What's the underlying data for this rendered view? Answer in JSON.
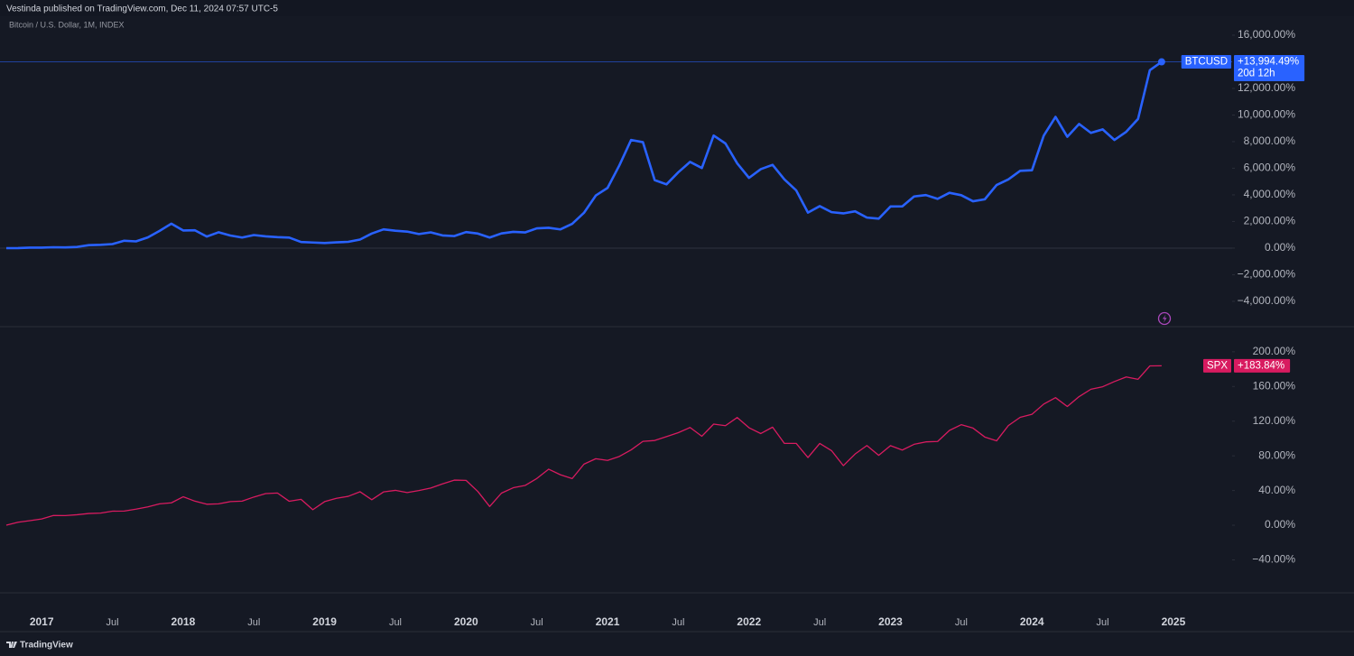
{
  "header": "Vestinda published on TradingView.com, Dec 11, 2024 07:57 UTC-5",
  "footer": "TradingView",
  "chart_data": [
    {
      "type": "line",
      "title": "Bitcoin / U.S. Dollar, 1M, INDEX",
      "ylim": [
        -5900,
        17420
      ],
      "yticks": [
        {
          "value": -4000,
          "label": "−4,000.00%"
        },
        {
          "value": -2000,
          "label": "−2,000.00%"
        },
        {
          "value": 0,
          "label": "0.00%"
        },
        {
          "value": 2000,
          "label": "2,000.00%"
        },
        {
          "value": 4000,
          "label": "4,000.00%"
        },
        {
          "value": 6000,
          "label": "6,000.00%"
        },
        {
          "value": 8000,
          "label": "8,000.00%"
        },
        {
          "value": 10000,
          "label": "10,000.00%"
        },
        {
          "value": 12000,
          "label": "12,000.00%"
        },
        {
          "value": 16000,
          "label": "16,000.00%"
        }
      ],
      "zero_line": true,
      "price_line": true,
      "last_marker": true,
      "series": [
        {
          "name": "BTCUSD",
          "color": "#2962ff",
          "last_label": "+13,994.49%",
          "countdown": "20d 12h",
          "values": [
            -2,
            3,
            35,
            35,
            66,
            51,
            89,
            221,
            246,
            302,
            556,
            506,
            801,
            1297,
            1836,
            1325,
            1339,
            868,
            1190,
            947,
            794,
            980,
            882,
            826,
            790,
            461,
            422,
            383,
            432,
            473,
            643,
            1097,
            1408,
            1308,
            1241,
            1058,
            1185,
            954,
            904,
            1206,
            1093,
            797,
            1105,
            1220,
            1177,
            1485,
            1527,
            1406,
            1827,
            2651,
            3949,
            4523,
            6213,
            8126,
            7959,
            5109,
            4788,
            5696,
            6478,
            6017,
            8461,
            7861,
            6366,
            5277,
            5934,
            6255,
            5165,
            4341,
            2665,
            3154,
            2700,
            2609,
            2763,
            2295,
            2211,
            3126,
            3133,
            3880,
            3985,
            3699,
            4153,
            3978,
            3517,
            3667,
            4739,
            5165,
            5808,
            5850,
            8448,
            9858,
            8364,
            9327,
            8657,
            8922,
            8126,
            8741,
            9705,
            13364,
            13994.49,
            null
          ]
        }
      ]
    },
    {
      "type": "line",
      "categories": [
        null,
        null,
        null,
        "2017",
        null,
        null,
        null,
        null,
        null,
        "Jul",
        null,
        null,
        null,
        null,
        null,
        "2018",
        null,
        null,
        null,
        null,
        null,
        "Jul",
        null,
        null,
        null,
        null,
        null,
        "2019",
        null,
        null,
        null,
        null,
        null,
        "Jul",
        null,
        null,
        null,
        null,
        null,
        "2020",
        null,
        null,
        null,
        null,
        null,
        "Jul",
        null,
        null,
        null,
        null,
        null,
        "2021",
        null,
        null,
        null,
        null,
        null,
        "Jul",
        null,
        null,
        null,
        null,
        null,
        "2022",
        null,
        null,
        null,
        null,
        null,
        "Jul",
        null,
        null,
        null,
        null,
        null,
        "2023",
        null,
        null,
        null,
        null,
        null,
        "Jul",
        null,
        null,
        null,
        null,
        null,
        "2024",
        null,
        null,
        null,
        null,
        null,
        "Jul",
        null,
        null,
        null,
        null,
        null,
        "2025"
      ],
      "ylim": [
        -78,
        229
      ],
      "yticks": [
        {
          "value": -40,
          "label": "−40.00%"
        },
        {
          "value": 0,
          "label": "0.00%"
        },
        {
          "value": 40,
          "label": "40.00%"
        },
        {
          "value": 80,
          "label": "80.00%"
        },
        {
          "value": 120,
          "label": "120.00%"
        },
        {
          "value": 160,
          "label": "160.00%"
        },
        {
          "value": 200,
          "label": "200.00%"
        }
      ],
      "zero_line": false,
      "price_line": false,
      "last_marker": false,
      "series": [
        {
          "name": "SPX",
          "color": "#d81b60",
          "last_label": "+183.84%",
          "values": [
            0,
            3.4,
            5.3,
            7.2,
            11.2,
            11.1,
            12.1,
            13.5,
            14.0,
            16.2,
            16.3,
            18.5,
            21.1,
            24.6,
            25.8,
            32.8,
            27.7,
            24.2,
            24.6,
            27.2,
            27.8,
            32.5,
            36.5,
            37.1,
            27.6,
            29.8,
            17.9,
            27.2,
            31.0,
            33.3,
            38.6,
            29.4,
            38.4,
            40.2,
            37.6,
            40.0,
            42.9,
            47.7,
            52.0,
            51.7,
            38.9,
            21.6,
            37.0,
            43.2,
            45.8,
            53.9,
            64.6,
            58.2,
            53.8,
            70.4,
            76.7,
            74.7,
            79.3,
            86.9,
            96.7,
            97.7,
            102.2,
            106.7,
            112.7,
            102.6,
            116.6,
            114.8,
            124.2,
            112.4,
            105.7,
            113.1,
            94.4,
            94.4,
            78.0,
            94.3,
            86.0,
            68.7,
            82.1,
            91.9,
            80.6,
            91.8,
            86.7,
            93.3,
            96.1,
            96.6,
            109.3,
            115.9,
            112.0,
            101.7,
            97.3,
            114.9,
            124.4,
            127.9,
            139.7,
            147.1,
            136.9,
            148.3,
            156.8,
            159.7,
            165.7,
            171.0,
            168.3,
            183.7,
            183.84,
            null
          ]
        }
      ]
    }
  ]
}
